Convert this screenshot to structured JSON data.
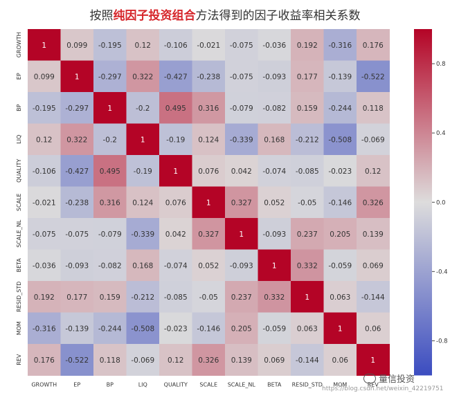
{
  "title": {
    "prefix": "按照",
    "highlight": "纯因子投资组合",
    "suffix": "方法得到的因子收益率相关系数"
  },
  "colors": {
    "title_highlight": "#d6262b",
    "cmap_low": "#3b4cc0",
    "cmap_mid": "#dddcdc",
    "cmap_high": "#b40426"
  },
  "chart_data": {
    "type": "heatmap",
    "title": "按照纯因子投资组合方法得到的因子收益率相关系数",
    "rows": [
      "GROWTH",
      "EP",
      "BP",
      "LIQ",
      "QUALITY",
      "SCALE",
      "SCALE_NL",
      "BETA",
      "RESID_STD",
      "MOM",
      "REV"
    ],
    "columns": [
      "GROWTH",
      "EP",
      "BP",
      "LIQ",
      "QUALITY",
      "SCALE",
      "SCALE_NL",
      "BETA",
      "RESID_STD",
      "MOM",
      "REV"
    ],
    "values": [
      [
        "1",
        "0.099",
        "-0.195",
        "0.12",
        "-0.106",
        "-0.021",
        "-0.075",
        "-0.036",
        "0.192",
        "-0.316",
        "0.176"
      ],
      [
        "0.099",
        "1",
        "-0.297",
        "0.322",
        "-0.427",
        "-0.238",
        "-0.075",
        "-0.093",
        "0.177",
        "-0.139",
        "-0.522"
      ],
      [
        "-0.195",
        "-0.297",
        "1",
        "-0.2",
        "0.495",
        "0.316",
        "-0.079",
        "-0.082",
        "0.159",
        "-0.244",
        "0.118"
      ],
      [
        "0.12",
        "0.322",
        "-0.2",
        "1",
        "-0.19",
        "0.124",
        "-0.339",
        "0.168",
        "-0.212",
        "-0.508",
        "-0.069"
      ],
      [
        "-0.106",
        "-0.427",
        "0.495",
        "-0.19",
        "1",
        "0.076",
        "0.042",
        "-0.074",
        "-0.085",
        "-0.023",
        "0.12"
      ],
      [
        "-0.021",
        "-0.238",
        "0.316",
        "0.124",
        "0.076",
        "1",
        "0.327",
        "0.052",
        "-0.05",
        "-0.146",
        "0.326"
      ],
      [
        "-0.075",
        "-0.075",
        "-0.079",
        "-0.339",
        "0.042",
        "0.327",
        "1",
        "-0.093",
        "0.237",
        "0.205",
        "0.139"
      ],
      [
        "-0.036",
        "-0.093",
        "-0.082",
        "0.168",
        "-0.074",
        "0.052",
        "-0.093",
        "1",
        "0.332",
        "-0.059",
        "0.069"
      ],
      [
        "0.192",
        "0.177",
        "0.159",
        "-0.212",
        "-0.085",
        "-0.05",
        "0.237",
        "0.332",
        "1",
        "0.063",
        "-0.144"
      ],
      [
        "-0.316",
        "-0.139",
        "-0.244",
        "-0.508",
        "-0.023",
        "-0.146",
        "0.205",
        "-0.059",
        "0.063",
        "1",
        "0.06"
      ],
      [
        "0.176",
        "-0.522",
        "0.118",
        "-0.069",
        "0.12",
        "0.326",
        "0.139",
        "0.069",
        "-0.144",
        "0.06",
        "1"
      ]
    ],
    "colorbar": {
      "range": [
        -1,
        1
      ],
      "ticks": [
        "0.8",
        "0.4",
        "0.0",
        "-0.4",
        "-0.8"
      ]
    }
  },
  "watermark": {
    "text": "量信投资",
    "url": "https://blog.csdn.net/weixin_42219751"
  }
}
